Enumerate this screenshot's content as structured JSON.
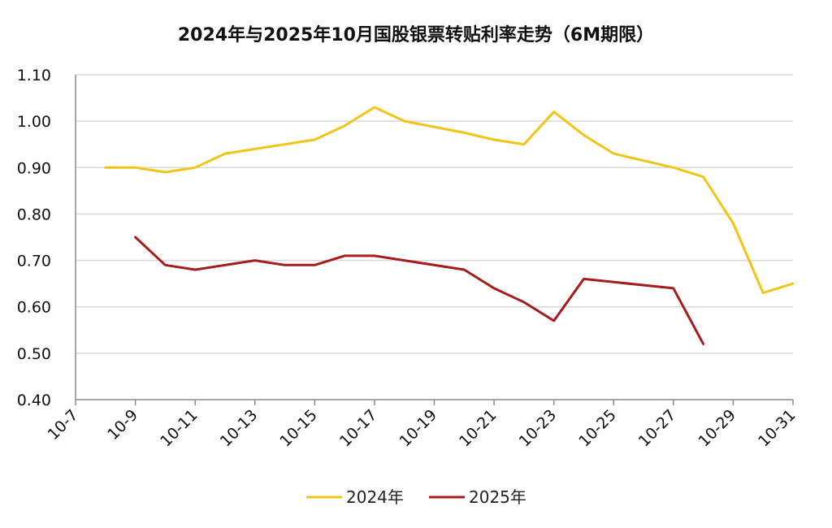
{
  "chart_data": {
    "type": "line",
    "title": "2024年与2025年10月国股银票转贴利率走势（6M期限）",
    "xlabel": "",
    "ylabel": "",
    "x_range": [
      7,
      31
    ],
    "x_tick_labels": [
      "10-7",
      "10-9",
      "10-11",
      "10-13",
      "10-15",
      "10-17",
      "10-19",
      "10-21",
      "10-23",
      "10-25",
      "10-27",
      "10-29",
      "10-31"
    ],
    "x_tick_days": [
      7,
      9,
      11,
      13,
      15,
      17,
      19,
      21,
      23,
      25,
      27,
      29,
      31
    ],
    "ylim": [
      0.4,
      1.1
    ],
    "y_ticks": [
      0.4,
      0.5,
      0.6,
      0.7,
      0.8,
      0.9,
      1.0,
      1.1
    ],
    "y_tick_labels": [
      "0.40",
      "0.50",
      "0.60",
      "0.70",
      "0.80",
      "0.90",
      "1.00",
      "1.10"
    ],
    "grid": "horizontal",
    "legend_position": "bottom",
    "series": [
      {
        "name": "2024年",
        "color": "#f2c417",
        "points": [
          {
            "x": 8,
            "y": 0.9
          },
          {
            "x": 9,
            "y": 0.9
          },
          {
            "x": 10,
            "y": 0.89
          },
          {
            "x": 11,
            "y": 0.9
          },
          {
            "x": 12,
            "y": 0.93
          },
          {
            "x": 13,
            "y": 0.94
          },
          {
            "x": 14,
            "y": 0.95
          },
          {
            "x": 15,
            "y": 0.96
          },
          {
            "x": 16,
            "y": 0.99
          },
          {
            "x": 17,
            "y": 1.03
          },
          {
            "x": 18,
            "y": 1.0
          },
          {
            "x": 20,
            "y": 0.975
          },
          {
            "x": 21,
            "y": 0.96
          },
          {
            "x": 22,
            "y": 0.95
          },
          {
            "x": 23,
            "y": 1.02
          },
          {
            "x": 24,
            "y": 0.97
          },
          {
            "x": 25,
            "y": 0.93
          },
          {
            "x": 27,
            "y": 0.9
          },
          {
            "x": 28,
            "y": 0.88
          },
          {
            "x": 29,
            "y": 0.78
          },
          {
            "x": 30,
            "y": 0.63
          },
          {
            "x": 31,
            "y": 0.65
          }
        ]
      },
      {
        "name": "2025年",
        "color": "#a61c1c",
        "points": [
          {
            "x": 9,
            "y": 0.75
          },
          {
            "x": 10,
            "y": 0.69
          },
          {
            "x": 11,
            "y": 0.68
          },
          {
            "x": 13,
            "y": 0.7
          },
          {
            "x": 14,
            "y": 0.69
          },
          {
            "x": 15,
            "y": 0.69
          },
          {
            "x": 16,
            "y": 0.71
          },
          {
            "x": 17,
            "y": 0.71
          },
          {
            "x": 20,
            "y": 0.68
          },
          {
            "x": 21,
            "y": 0.64
          },
          {
            "x": 22,
            "y": 0.61
          },
          {
            "x": 23,
            "y": 0.57
          },
          {
            "x": 24,
            "y": 0.66
          },
          {
            "x": 27,
            "y": 0.64
          },
          {
            "x": 28,
            "y": 0.52
          }
        ]
      }
    ]
  }
}
